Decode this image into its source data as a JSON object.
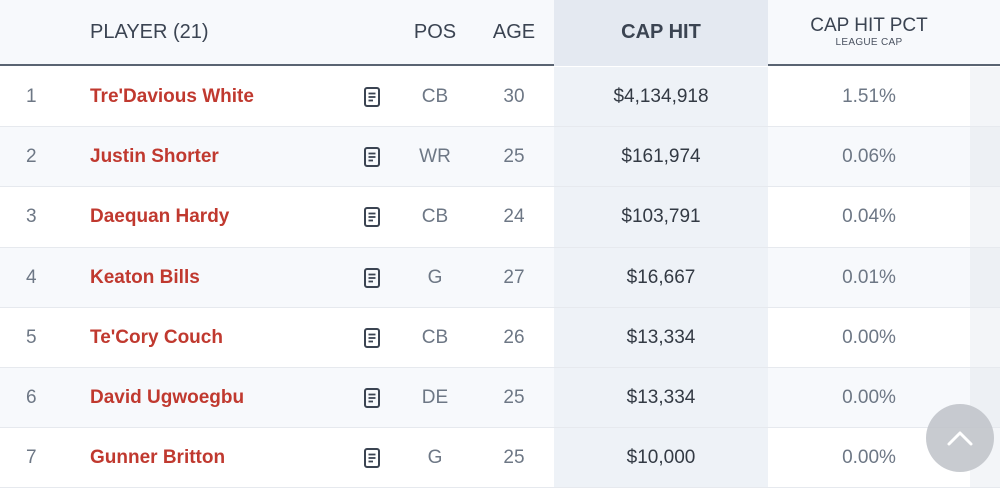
{
  "header": {
    "player_label": "PLAYER (21)",
    "pos_label": "POS",
    "age_label": "AGE",
    "cap_hit_label": "CAP HIT",
    "cap_pct_label": "CAP HIT PCT",
    "cap_pct_sublabel": "LEAGUE CAP"
  },
  "rows": [
    {
      "rank": "1",
      "name": "Tre'Davious White",
      "pos": "CB",
      "age": "30",
      "cap_hit": "$4,134,918",
      "cap_pct": "1.51%"
    },
    {
      "rank": "2",
      "name": "Justin Shorter",
      "pos": "WR",
      "age": "25",
      "cap_hit": "$161,974",
      "cap_pct": "0.06%"
    },
    {
      "rank": "3",
      "name": "Daequan Hardy",
      "pos": "CB",
      "age": "24",
      "cap_hit": "$103,791",
      "cap_pct": "0.04%"
    },
    {
      "rank": "4",
      "name": "Keaton Bills",
      "pos": "G",
      "age": "27",
      "cap_hit": "$16,667",
      "cap_pct": "0.01%"
    },
    {
      "rank": "5",
      "name": "Te'Cory Couch",
      "pos": "CB",
      "age": "26",
      "cap_hit": "$13,334",
      "cap_pct": "0.00%"
    },
    {
      "rank": "6",
      "name": "David Ugwoegbu",
      "pos": "DE",
      "age": "25",
      "cap_hit": "$13,334",
      "cap_pct": "0.00%"
    },
    {
      "rank": "7",
      "name": "Gunner Britton",
      "pos": "G",
      "age": "25",
      "cap_hit": "$10,000",
      "cap_pct": "0.00%"
    }
  ],
  "icons": {
    "note": "document-icon",
    "scroll_top": "chevron-up-icon"
  },
  "colors": {
    "player_link": "#c0392f",
    "header_text": "#3b4452",
    "cap_column_bg": "#e4e9f1"
  }
}
